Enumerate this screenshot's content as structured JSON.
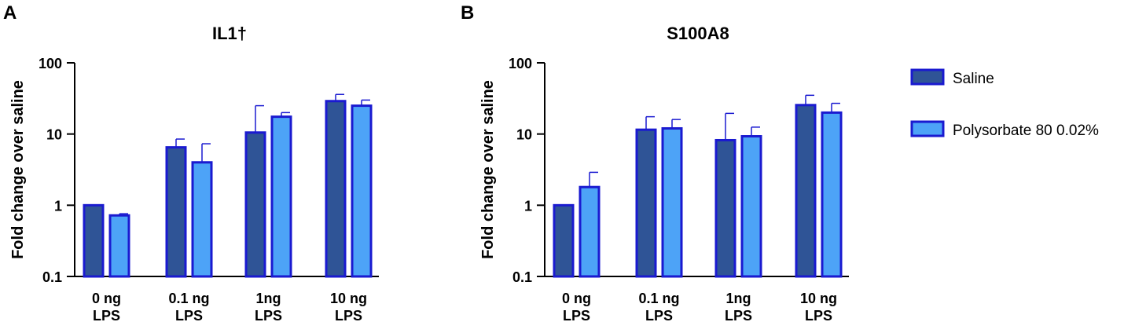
{
  "panel_letters": [
    "A",
    "B"
  ],
  "legend": [
    {
      "label": "Saline",
      "fill": "#2f5496",
      "stroke": "#1a1ad0"
    },
    {
      "label": "Polysorbate 80 0.02%",
      "fill": "#4da3f7",
      "stroke": "#1a1ad0"
    }
  ],
  "chart_data": [
    {
      "type": "bar",
      "title": "IL1†",
      "ylabel": "Fold change over saline",
      "yscale": "log",
      "ylim": [
        0.1,
        100
      ],
      "yticks": [
        "0.1",
        "1",
        "10",
        "100"
      ],
      "categories": [
        [
          "0 ng",
          "LPS"
        ],
        [
          "0.1 ng",
          "LPS"
        ],
        [
          "1ng",
          "LPS"
        ],
        [
          "10 ng",
          "LPS"
        ]
      ],
      "series": [
        {
          "name": "Saline",
          "values": [
            1.0,
            6.5,
            10.5,
            29
          ],
          "errors": [
            1.0,
            8.5,
            25,
            36
          ]
        },
        {
          "name": "Polysorbate 80 0.02%",
          "values": [
            0.72,
            4.0,
            17.5,
            25
          ],
          "errors": [
            0.76,
            7.3,
            20,
            30
          ]
        }
      ]
    },
    {
      "type": "bar",
      "title": "S100A8",
      "ylabel": "Fold change over saline",
      "yscale": "log",
      "ylim": [
        0.1,
        100
      ],
      "yticks": [
        "0.1",
        "1",
        "10",
        "100"
      ],
      "categories": [
        [
          "0 ng",
          "LPS"
        ],
        [
          "0.1 ng",
          "LPS"
        ],
        [
          "1ng",
          "LPS"
        ],
        [
          "10 ng",
          "LPS"
        ]
      ],
      "series": [
        {
          "name": "Saline",
          "values": [
            1.0,
            11.5,
            8.2,
            25.5
          ],
          "errors": [
            1.0,
            17.5,
            19.5,
            35
          ]
        },
        {
          "name": "Polysorbate 80 0.02%",
          "values": [
            1.8,
            12.0,
            9.3,
            20
          ],
          "errors": [
            2.9,
            16,
            12.5,
            27
          ]
        }
      ]
    }
  ]
}
